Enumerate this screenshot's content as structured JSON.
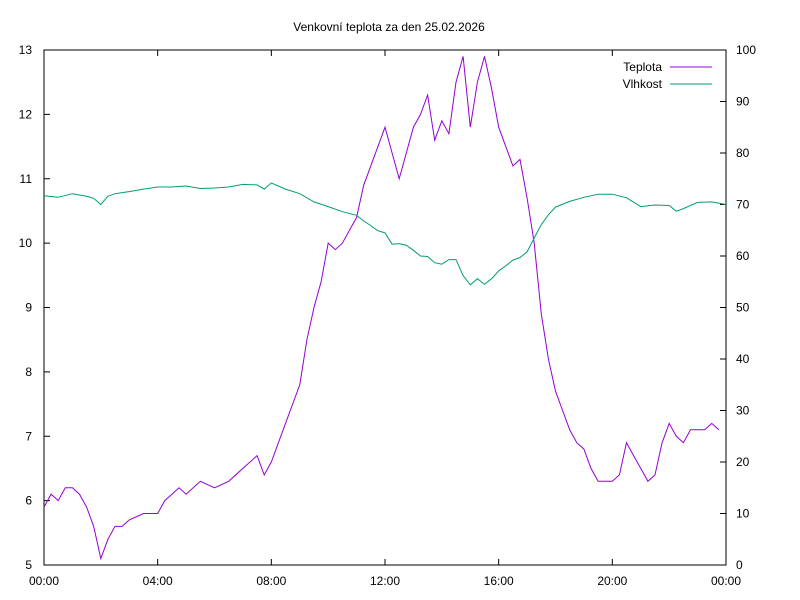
{
  "chart_data": {
    "type": "line",
    "title": "Venkovní teplota za den 25.02.2026",
    "xlabel": "",
    "ylabel": "",
    "y2label": "",
    "grid": false,
    "legend_position": "top-right",
    "x_range": [
      "00:00",
      "24:00"
    ],
    "x_ticks": [
      "00:00",
      "04:00",
      "08:00",
      "12:00",
      "16:00",
      "20:00",
      "00:00"
    ],
    "y_range": [
      5,
      13
    ],
    "y_ticks": [
      "5",
      "6",
      "7",
      "8",
      "9",
      "10",
      "11",
      "12",
      "13"
    ],
    "y2_range": [
      0,
      100
    ],
    "y2_ticks": [
      "0",
      "10",
      "20",
      "30",
      "40",
      "50",
      "60",
      "70",
      "80",
      "90",
      "100"
    ],
    "series": [
      {
        "name": "Teplota",
        "axis": "left",
        "color": "#9400d3",
        "points": [
          [
            "00:00",
            5.9
          ],
          [
            "00:15",
            6.1
          ],
          [
            "00:30",
            6.0
          ],
          [
            "00:45",
            6.2
          ],
          [
            "01:00",
            6.2
          ],
          [
            "01:15",
            6.1
          ],
          [
            "01:30",
            5.9
          ],
          [
            "01:45",
            5.6
          ],
          [
            "02:00",
            5.1
          ],
          [
            "02:15",
            5.4
          ],
          [
            "02:30",
            5.6
          ],
          [
            "02:45",
            5.6
          ],
          [
            "03:00",
            5.7
          ],
          [
            "03:30",
            5.8
          ],
          [
            "04:00",
            5.8
          ],
          [
            "04:15",
            6.0
          ],
          [
            "04:30",
            6.1
          ],
          [
            "04:45",
            6.2
          ],
          [
            "05:00",
            6.1
          ],
          [
            "05:30",
            6.3
          ],
          [
            "06:00",
            6.2
          ],
          [
            "06:30",
            6.3
          ],
          [
            "07:00",
            6.5
          ],
          [
            "07:30",
            6.7
          ],
          [
            "07:45",
            6.4
          ],
          [
            "08:00",
            6.6
          ],
          [
            "08:30",
            7.2
          ],
          [
            "09:00",
            7.8
          ],
          [
            "09:15",
            8.5
          ],
          [
            "09:30",
            9.0
          ],
          [
            "09:45",
            9.4
          ],
          [
            "10:00",
            10.0
          ],
          [
            "10:15",
            9.9
          ],
          [
            "10:30",
            10.0
          ],
          [
            "10:45",
            10.2
          ],
          [
            "11:00",
            10.4
          ],
          [
            "11:15",
            10.9
          ],
          [
            "11:30",
            11.2
          ],
          [
            "11:45",
            11.5
          ],
          [
            "12:00",
            11.8
          ],
          [
            "12:15",
            11.4
          ],
          [
            "12:30",
            11.0
          ],
          [
            "12:45",
            11.4
          ],
          [
            "13:00",
            11.8
          ],
          [
            "13:15",
            12.0
          ],
          [
            "13:30",
            12.3
          ],
          [
            "13:45",
            11.6
          ],
          [
            "14:00",
            11.9
          ],
          [
            "14:15",
            11.7
          ],
          [
            "14:30",
            12.5
          ],
          [
            "14:45",
            12.9
          ],
          [
            "15:00",
            11.8
          ],
          [
            "15:15",
            12.5
          ],
          [
            "15:30",
            12.9
          ],
          [
            "15:45",
            12.4
          ],
          [
            "16:00",
            11.8
          ],
          [
            "16:15",
            11.5
          ],
          [
            "16:30",
            11.2
          ],
          [
            "16:45",
            11.3
          ],
          [
            "17:00",
            10.7
          ],
          [
            "17:15",
            10.0
          ],
          [
            "17:30",
            8.9
          ],
          [
            "17:45",
            8.2
          ],
          [
            "18:00",
            7.7
          ],
          [
            "18:15",
            7.4
          ],
          [
            "18:30",
            7.1
          ],
          [
            "18:45",
            6.9
          ],
          [
            "19:00",
            6.8
          ],
          [
            "19:15",
            6.5
          ],
          [
            "19:30",
            6.3
          ],
          [
            "20:00",
            6.3
          ],
          [
            "20:15",
            6.4
          ],
          [
            "20:30",
            6.9
          ],
          [
            "20:45",
            6.7
          ],
          [
            "21:00",
            6.5
          ],
          [
            "21:15",
            6.3
          ],
          [
            "21:30",
            6.4
          ],
          [
            "21:45",
            6.9
          ],
          [
            "22:00",
            7.2
          ],
          [
            "22:15",
            7.0
          ],
          [
            "22:30",
            6.9
          ],
          [
            "22:45",
            7.1
          ],
          [
            "23:00",
            7.1
          ],
          [
            "23:15",
            7.1
          ],
          [
            "23:30",
            7.2
          ],
          [
            "23:45",
            7.1
          ]
        ]
      },
      {
        "name": "Vlhkost",
        "axis": "right",
        "color": "#009e73",
        "points": [
          [
            "00:00",
            71.7
          ],
          [
            "00:30",
            71.4
          ],
          [
            "01:00",
            72.1
          ],
          [
            "01:30",
            71.6
          ],
          [
            "01:45",
            71.2
          ],
          [
            "02:00",
            70.0
          ],
          [
            "02:15",
            71.6
          ],
          [
            "02:30",
            72.1
          ],
          [
            "03:00",
            72.5
          ],
          [
            "03:30",
            73.0
          ],
          [
            "04:00",
            73.4
          ],
          [
            "04:30",
            73.4
          ],
          [
            "05:00",
            73.6
          ],
          [
            "05:30",
            73.1
          ],
          [
            "06:00",
            73.2
          ],
          [
            "06:30",
            73.4
          ],
          [
            "07:00",
            73.9
          ],
          [
            "07:30",
            73.8
          ],
          [
            "07:45",
            73.0
          ],
          [
            "08:00",
            74.2
          ],
          [
            "08:30",
            73.0
          ],
          [
            "09:00",
            72.1
          ],
          [
            "09:30",
            70.5
          ],
          [
            "10:00",
            69.6
          ],
          [
            "10:30",
            68.6
          ],
          [
            "11:00",
            67.9
          ],
          [
            "11:15",
            66.8
          ],
          [
            "11:30",
            65.9
          ],
          [
            "11:45",
            64.9
          ],
          [
            "12:00",
            64.5
          ],
          [
            "12:15",
            62.3
          ],
          [
            "12:30",
            62.4
          ],
          [
            "12:45",
            62.1
          ],
          [
            "13:00",
            61.1
          ],
          [
            "13:15",
            60.0
          ],
          [
            "13:30",
            59.9
          ],
          [
            "13:45",
            58.7
          ],
          [
            "14:00",
            58.4
          ],
          [
            "14:15",
            59.3
          ],
          [
            "14:30",
            59.3
          ],
          [
            "14:45",
            56.2
          ],
          [
            "15:00",
            54.4
          ],
          [
            "15:15",
            55.6
          ],
          [
            "15:30",
            54.5
          ],
          [
            "15:45",
            55.6
          ],
          [
            "16:00",
            57.1
          ],
          [
            "16:15",
            58.1
          ],
          [
            "16:30",
            59.2
          ],
          [
            "16:45",
            59.7
          ],
          [
            "17:00",
            60.8
          ],
          [
            "17:15",
            63.5
          ],
          [
            "17:30",
            66.1
          ],
          [
            "17:45",
            68.0
          ],
          [
            "18:00",
            69.5
          ],
          [
            "18:30",
            70.6
          ],
          [
            "19:00",
            71.4
          ],
          [
            "19:30",
            72.0
          ],
          [
            "20:00",
            72.0
          ],
          [
            "20:30",
            71.3
          ],
          [
            "21:00",
            69.6
          ],
          [
            "21:30",
            69.9
          ],
          [
            "22:00",
            69.8
          ],
          [
            "22:15",
            68.7
          ],
          [
            "22:30",
            69.2
          ],
          [
            "23:00",
            70.4
          ],
          [
            "23:30",
            70.5
          ],
          [
            "24:00",
            70.0
          ]
        ]
      }
    ]
  }
}
